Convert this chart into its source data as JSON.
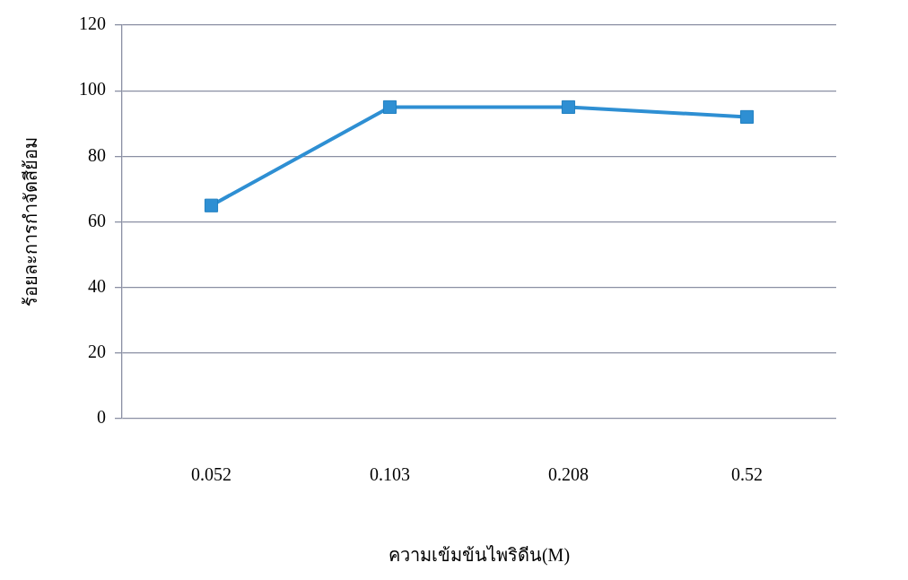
{
  "chart_data": {
    "type": "line",
    "xlabel": "ความเข้มข้นไพริดีน(M)",
    "ylabel": "ร้อยละการกำจัดสีย้อม",
    "categories": [
      "0.052",
      "0.103",
      "0.208",
      "0.52"
    ],
    "series": [
      {
        "color": "#2e8fd3",
        "values": [
          65,
          95,
          95,
          92
        ]
      }
    ],
    "ylim": [
      0,
      120
    ],
    "yticks": [
      0,
      20,
      40,
      60,
      80,
      100,
      120
    ],
    "grid": "y",
    "legend": false,
    "marker": "square",
    "line_style": "solid"
  }
}
